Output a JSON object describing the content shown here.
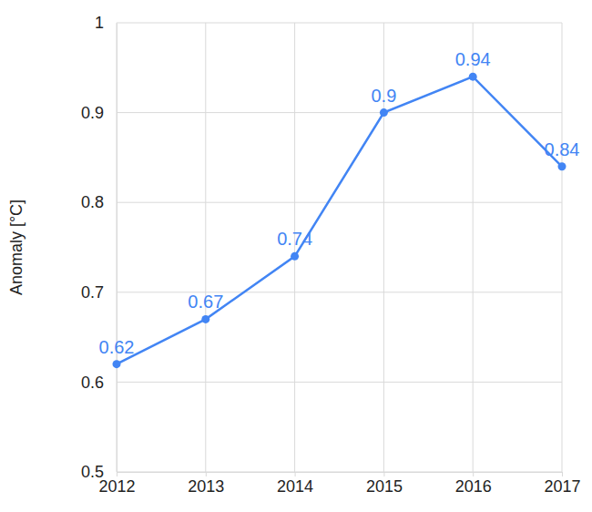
{
  "chart_data": {
    "type": "line",
    "y_label": "Anomaly [°C]",
    "x": [
      2012,
      2013,
      2014,
      2015,
      2016,
      2017
    ],
    "values": [
      0.62,
      0.67,
      0.74,
      0.9,
      0.94,
      0.84
    ],
    "color": "#4285f4",
    "xlim": [
      2012,
      2017
    ],
    "xticks": [
      2012,
      2013,
      2014,
      2015,
      2016,
      2017
    ],
    "ylim": [
      0.5,
      1
    ],
    "yticks": [
      0.5,
      0.6,
      0.7,
      0.8,
      0.9,
      1
    ],
    "grid": true,
    "data_labels": true,
    "marker": "circle",
    "line_style": "solid"
  }
}
